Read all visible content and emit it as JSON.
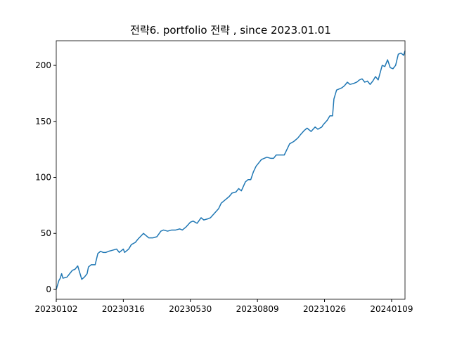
{
  "chart_data": {
    "type": "line",
    "title": "전략6. portfolio 전략 , since 2023.01.01",
    "x": [
      0,
      2,
      3,
      4,
      5,
      8,
      10,
      12,
      14,
      16,
      17,
      19,
      21,
      23,
      24,
      26,
      29,
      31,
      33,
      35,
      37,
      39,
      42,
      45,
      47,
      50,
      51,
      54,
      56,
      59,
      61,
      65,
      67,
      69,
      72,
      75,
      78,
      80,
      83,
      86,
      89,
      92,
      94,
      97,
      100,
      102,
      105,
      108,
      110,
      113,
      115,
      118,
      121,
      123,
      126,
      129,
      131,
      134,
      136,
      138,
      141,
      143,
      145,
      147,
      149,
      151,
      153,
      155,
      157,
      160,
      162,
      164,
      167,
      170,
      172,
      174,
      177,
      180,
      182,
      185,
      187,
      190,
      193,
      195,
      198,
      199,
      202,
      204,
      206,
      207,
      209,
      211,
      213,
      215,
      217,
      219,
      222,
      224,
      226,
      228,
      230,
      232,
      234,
      236,
      238,
      240,
      243,
      245,
      247,
      249,
      251,
      253,
      255,
      257,
      259,
      260
    ],
    "series": [
      {
        "color": "#1f77b4",
        "values": [
          0,
          8,
          10,
          14,
          10,
          11,
          14,
          17,
          18,
          21,
          17,
          9,
          11,
          14,
          20,
          22,
          22,
          32,
          34,
          33,
          33,
          34,
          35,
          36,
          33,
          36,
          33,
          36,
          40,
          42,
          45,
          50,
          48,
          46,
          46,
          47,
          52,
          53,
          52,
          53,
          53,
          54,
          53,
          56,
          60,
          61,
          59,
          64,
          62,
          63,
          64,
          68,
          72,
          77,
          80,
          83,
          86,
          87,
          90,
          88,
          96,
          98,
          98,
          105,
          110,
          113,
          116,
          117,
          118,
          117,
          117,
          120,
          120,
          120,
          125,
          130,
          132,
          135,
          138,
          142,
          144,
          141,
          145,
          143,
          145,
          147,
          151,
          155,
          155,
          170,
          178,
          179,
          180,
          182,
          185,
          183,
          184,
          185,
          187,
          188,
          185,
          186,
          183,
          186,
          190,
          187,
          200,
          199,
          205,
          198,
          197,
          200,
          210,
          211,
          209,
          213
        ]
      }
    ],
    "xlim": [
      0,
      260
    ],
    "ylim": [
      -8.8,
      222
    ],
    "xticks": [
      {
        "value": 0,
        "label": "20230102"
      },
      {
        "value": 50,
        "label": "20230316"
      },
      {
        "value": 100,
        "label": "20230530"
      },
      {
        "value": 150,
        "label": "20230809"
      },
      {
        "value": 200,
        "label": "20231026"
      },
      {
        "value": 250,
        "label": "20240109"
      }
    ],
    "yticks": [
      0,
      50,
      100,
      150,
      200
    ]
  }
}
